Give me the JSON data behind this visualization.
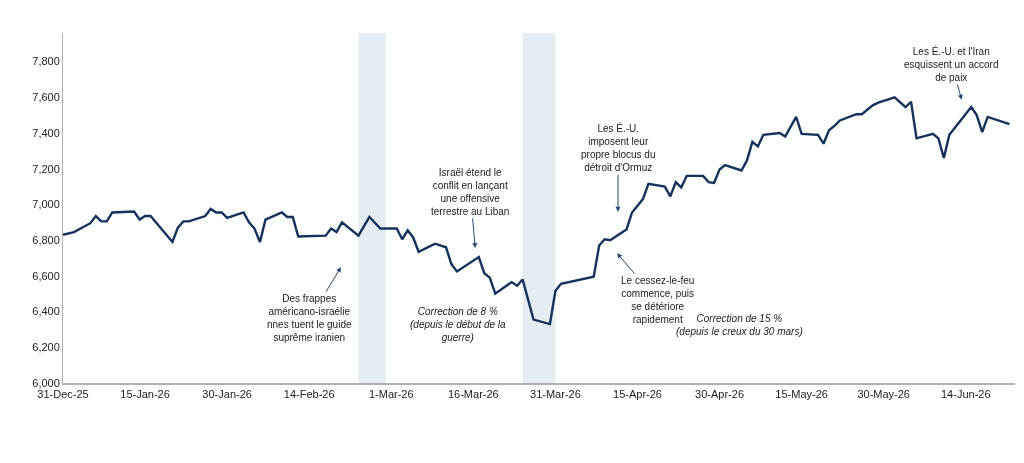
{
  "chart_data": {
    "type": "line",
    "x": [
      "2025-12-31",
      "2026-01-02",
      "2026-01-05",
      "2026-01-06",
      "2026-01-07",
      "2026-01-08",
      "2026-01-09",
      "2026-01-13",
      "2026-01-14",
      "2026-01-15",
      "2026-01-16",
      "2026-01-20",
      "2026-01-21",
      "2026-01-22",
      "2026-01-23",
      "2026-01-26",
      "2026-01-27",
      "2026-01-28",
      "2026-01-29",
      "2026-01-30",
      "2026-02-02",
      "2026-02-03",
      "2026-02-04",
      "2026-02-05",
      "2026-02-06",
      "2026-02-09",
      "2026-02-10",
      "2026-02-11",
      "2026-02-12",
      "2026-02-17",
      "2026-02-18",
      "2026-02-19",
      "2026-02-20",
      "2026-02-23",
      "2026-02-25",
      "2026-02-27",
      "2026-03-02",
      "2026-03-03",
      "2026-03-04",
      "2026-03-05",
      "2026-03-06",
      "2026-03-09",
      "2026-03-11",
      "2026-03-12",
      "2026-03-13",
      "2026-03-17",
      "2026-03-18",
      "2026-03-19",
      "2026-03-20",
      "2026-03-23",
      "2026-03-24",
      "2026-03-25",
      "2026-03-27",
      "2026-03-30",
      "2026-03-31",
      "2026-04-01",
      "2026-04-07",
      "2026-04-08",
      "2026-04-09",
      "2026-04-10",
      "2026-04-13",
      "2026-04-14",
      "2026-04-16",
      "2026-04-17",
      "2026-04-20",
      "2026-04-21",
      "2026-04-22",
      "2026-04-23",
      "2026-04-24",
      "2026-04-27",
      "2026-04-28",
      "2026-04-29",
      "2026-04-30",
      "2026-05-01",
      "2026-05-04",
      "2026-05-05",
      "2026-05-06",
      "2026-05-07",
      "2026-05-08",
      "2026-05-11",
      "2026-05-12",
      "2026-05-14",
      "2026-05-15",
      "2026-05-18",
      "2026-05-19",
      "2026-05-20",
      "2026-05-21",
      "2026-05-22",
      "2026-05-25",
      "2026-05-26",
      "2026-05-28",
      "2026-05-29",
      "2026-06-01",
      "2026-06-03",
      "2026-06-04",
      "2026-06-05",
      "2026-06-08",
      "2026-06-09",
      "2026-06-10",
      "2026-06-11",
      "2026-06-15",
      "2026-06-16",
      "2026-06-17",
      "2026-06-18",
      "2026-06-22"
    ],
    "series": [
      {
        "color": "#14325c",
        "values": [
          6830,
          6845,
          6895,
          6935,
          6905,
          6905,
          6955,
          6960,
          6915,
          6935,
          6935,
          6790,
          6870,
          6905,
          6905,
          6935,
          6975,
          6955,
          6955,
          6925,
          6955,
          6900,
          6865,
          6790,
          6915,
          6955,
          6930,
          6930,
          6820,
          6825,
          6865,
          6845,
          6900,
          6825,
          6930,
          6865,
          6865,
          6805,
          6855,
          6815,
          6735,
          6780,
          6760,
          6665,
          6625,
          6705,
          6615,
          6590,
          6500,
          6565,
          6545,
          6580,
          6355,
          6330,
          6515,
          6555,
          6595,
          6770,
          6805,
          6800,
          6860,
          6955,
          7030,
          7115,
          7100,
          7045,
          7125,
          7095,
          7160,
          7160,
          7125,
          7120,
          7195,
          7220,
          7190,
          7245,
          7350,
          7325,
          7390,
          7400,
          7380,
          7490,
          7395,
          7390,
          7340,
          7415,
          7440,
          7470,
          7505,
          7505,
          7555,
          7570,
          7600,
          7545,
          7575,
          7370,
          7395,
          7370,
          7260,
          7390,
          7545,
          7500,
          7405,
          7490,
          7450
        ]
      }
    ],
    "xlim": [
      "2025-12-31",
      "2026-06-23"
    ],
    "xticks": [
      {
        "value": "2025-12-31",
        "label": "31-Dec-25"
      },
      {
        "value": "2026-01-15",
        "label": "15-Jan-26"
      },
      {
        "value": "2026-01-30",
        "label": "30-Jan-26"
      },
      {
        "value": "2026-02-14",
        "label": "14-Feb-26"
      },
      {
        "value": "2026-03-01",
        "label": "1-Mar-26"
      },
      {
        "value": "2026-03-16",
        "label": "16-Mar-26"
      },
      {
        "value": "2026-03-31",
        "label": "31-Mar-26"
      },
      {
        "value": "2026-04-15",
        "label": "15-Apr-26"
      },
      {
        "value": "2026-04-30",
        "label": "30-Apr-26"
      },
      {
        "value": "2026-05-15",
        "label": "15-May-26"
      },
      {
        "value": "2026-05-30",
        "label": "30-May-26"
      },
      {
        "value": "2026-06-14",
        "label": "14-Jun-26"
      }
    ],
    "ylim": [
      6000,
      7960
    ],
    "yticks": [
      {
        "value": 6000,
        "label": "6,000"
      },
      {
        "value": 6200,
        "label": "6,200"
      },
      {
        "value": 6400,
        "label": "6,400"
      },
      {
        "value": 6600,
        "label": "6,600"
      },
      {
        "value": 6800,
        "label": "6,800"
      },
      {
        "value": 7000,
        "label": "7,000"
      },
      {
        "value": 7200,
        "label": "7,200"
      },
      {
        "value": 7400,
        "label": "7,400"
      },
      {
        "value": 7600,
        "label": "7,600"
      },
      {
        "value": 7800,
        "label": "7,800"
      }
    ],
    "bands": [
      {
        "axis": "x",
        "from": "2026-02-23",
        "to": "2026-02-28",
        "color": "#e6edf2"
      },
      {
        "axis": "x",
        "from": "2026-03-25",
        "to": "2026-03-31",
        "color": "#e6edf2"
      }
    ],
    "annotations": [
      "Des frappes\naméricano-israélie\nnnes tuent le guide\nsuprême iranien",
      "Israël étend le\nconflit en lançant\nune offensive\nterrestre au Liban",
      "Les É.-U.\nimposent leur\npropre blocus du\ndétroit d'Ormuz",
      "Le cessez-le-feu\ncommence, puis\nse détériore\nrapidement",
      "Les É.-U. et l'Iran\nesquissent un accord\nde paix",
      "Correction de 8 %\n(depuis le début de la\nguerre)",
      "Correction de 15 %\n(depuis le creux du 30 mars)"
    ],
    "grid": false,
    "marker": "none",
    "line_style": "solid"
  }
}
